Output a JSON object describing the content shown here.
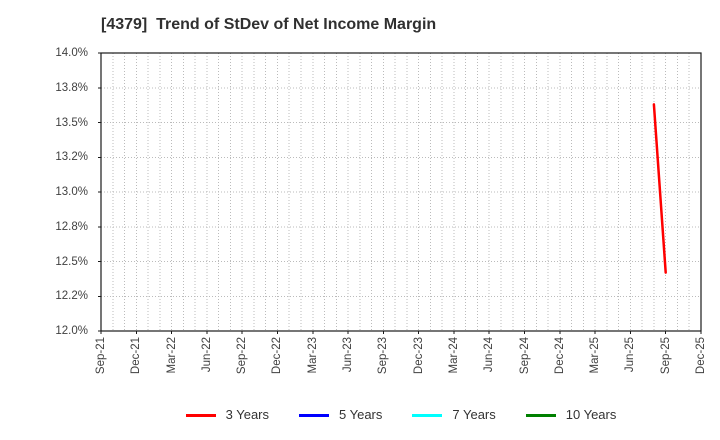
{
  "chart_data": {
    "type": "line",
    "title": "[4379]  Trend of StDev of Net Income Margin",
    "grid": true,
    "grid_style": "dotted",
    "legend_position": "bottom",
    "background_color": "#ffffff",
    "spine_color": "#1a1a1a",
    "grid_color": "#bbbbbb",
    "text_color": "#404040",
    "x_axis": {
      "start_month": "Sep-21",
      "end_month": "Dec-25",
      "minor_grid": "monthly",
      "tick_labels": [
        {
          "label": "Sep-21"
        },
        {
          "label": "Dec-21"
        },
        {
          "label": "Mar-22"
        },
        {
          "label": "Jun-22"
        },
        {
          "label": "Sep-22"
        },
        {
          "label": "Dec-22"
        },
        {
          "label": "Mar-23"
        },
        {
          "label": "Jun-23"
        },
        {
          "label": "Sep-23"
        },
        {
          "label": "Dec-23"
        },
        {
          "label": "Mar-24"
        },
        {
          "label": "Jun-24"
        },
        {
          "label": "Sep-24"
        },
        {
          "label": "Dec-24"
        },
        {
          "label": "Mar-25"
        },
        {
          "label": "Jun-25"
        },
        {
          "label": "Sep-25"
        },
        {
          "label": "Dec-25"
        }
      ]
    },
    "y_axis": {
      "min": 12.0,
      "max": 14.0,
      "unit": "%",
      "ticks": [
        {
          "label": "14.0%",
          "value": 14.0
        },
        {
          "label": "13.8%",
          "value": 13.75
        },
        {
          "label": "13.5%",
          "value": 13.5
        },
        {
          "label": "13.2%",
          "value": 13.25
        },
        {
          "label": "13.0%",
          "value": 13.0
        },
        {
          "label": "12.8%",
          "value": 12.75
        },
        {
          "label": "12.5%",
          "value": 12.5
        },
        {
          "label": "12.2%",
          "value": 12.25
        },
        {
          "label": "12.0%",
          "value": 12.0
        }
      ]
    },
    "series": [
      {
        "name": "3 Years",
        "color": "#ff0000",
        "points": [
          {
            "x": "Aug-25",
            "y": 13.63
          },
          {
            "x": "Sep-25",
            "y": 12.42
          }
        ]
      },
      {
        "name": "5 Years",
        "color": "#0000ff",
        "points": []
      },
      {
        "name": "7 Years",
        "color": "#00ffff",
        "points": []
      },
      {
        "name": "10 Years",
        "color": "#008000",
        "points": []
      }
    ]
  }
}
